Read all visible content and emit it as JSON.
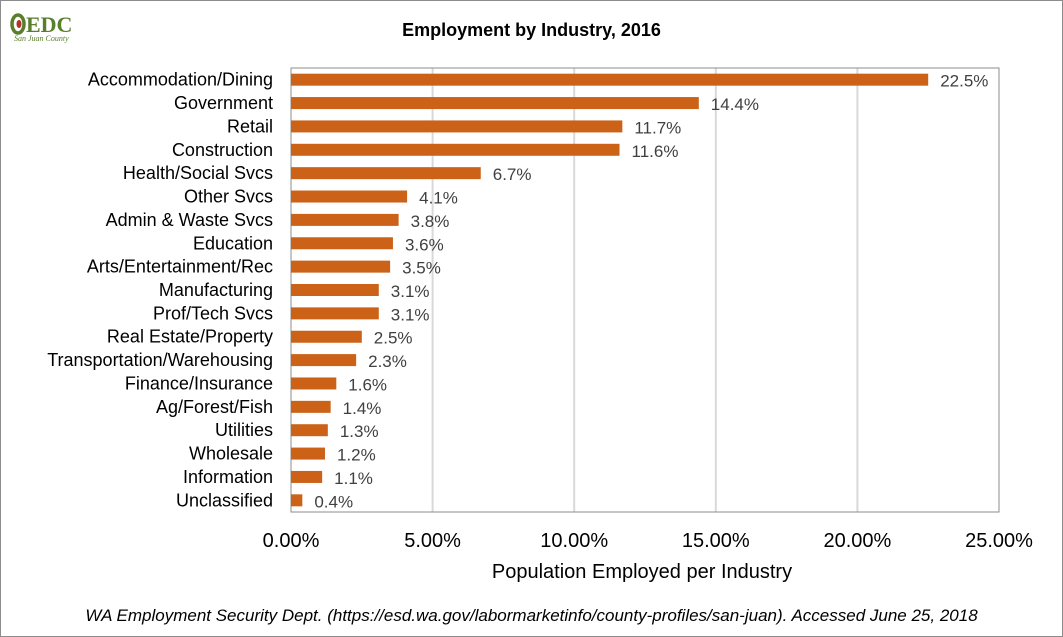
{
  "logo": {
    "text": "EDC",
    "subtext": "San Juan County",
    "colors": {
      "green": "#5a7f2b",
      "red": "#b5302a"
    }
  },
  "source_note": "WA Employment Security Dept. (https://esd.wa.gov/labormarketinfo/county-profiles/san-juan). Accessed June 25, 2018",
  "chart_data": {
    "type": "bar",
    "orientation": "horizontal",
    "title": "Employment by Industry, 2016",
    "xlabel": "Population  Employed  per Industry",
    "ylabel": "",
    "xlim": [
      0,
      25
    ],
    "xticks": [
      0,
      5,
      10,
      15,
      20,
      25
    ],
    "xtick_labels": [
      "0.00%",
      "5.00%",
      "10.00%",
      "15.00%",
      "20.00%",
      "25.00%"
    ],
    "grid": "vertical",
    "bar_color": "#cc6218",
    "categories": [
      "Accommodation/Dining",
      "Government",
      "Retail",
      "Construction",
      "Health/Social Svcs",
      "Other Svcs",
      "Admin & Waste Svcs",
      "Education",
      "Arts/Entertainment/Rec",
      "Manufacturing",
      "Prof/Tech Svcs",
      "Real Estate/Property",
      "Transportation/Warehousing",
      "Finance/Insurance",
      "Ag/Forest/Fish",
      "Utilities",
      "Wholesale",
      "Information",
      "Unclassified"
    ],
    "values": [
      22.5,
      14.4,
      11.7,
      11.6,
      6.7,
      4.1,
      3.8,
      3.6,
      3.5,
      3.1,
      3.1,
      2.5,
      2.3,
      1.6,
      1.4,
      1.3,
      1.2,
      1.1,
      0.4
    ],
    "data_labels": [
      "22.5%",
      "14.4%",
      "11.7%",
      "11.6%",
      "6.7%",
      "4.1%",
      "3.8%",
      "3.6%",
      "3.5%",
      "3.1%",
      "3.1%",
      "2.5%",
      "2.3%",
      "1.6%",
      "1.4%",
      "1.3%",
      "1.2%",
      "1.1%",
      "0.4%"
    ]
  }
}
